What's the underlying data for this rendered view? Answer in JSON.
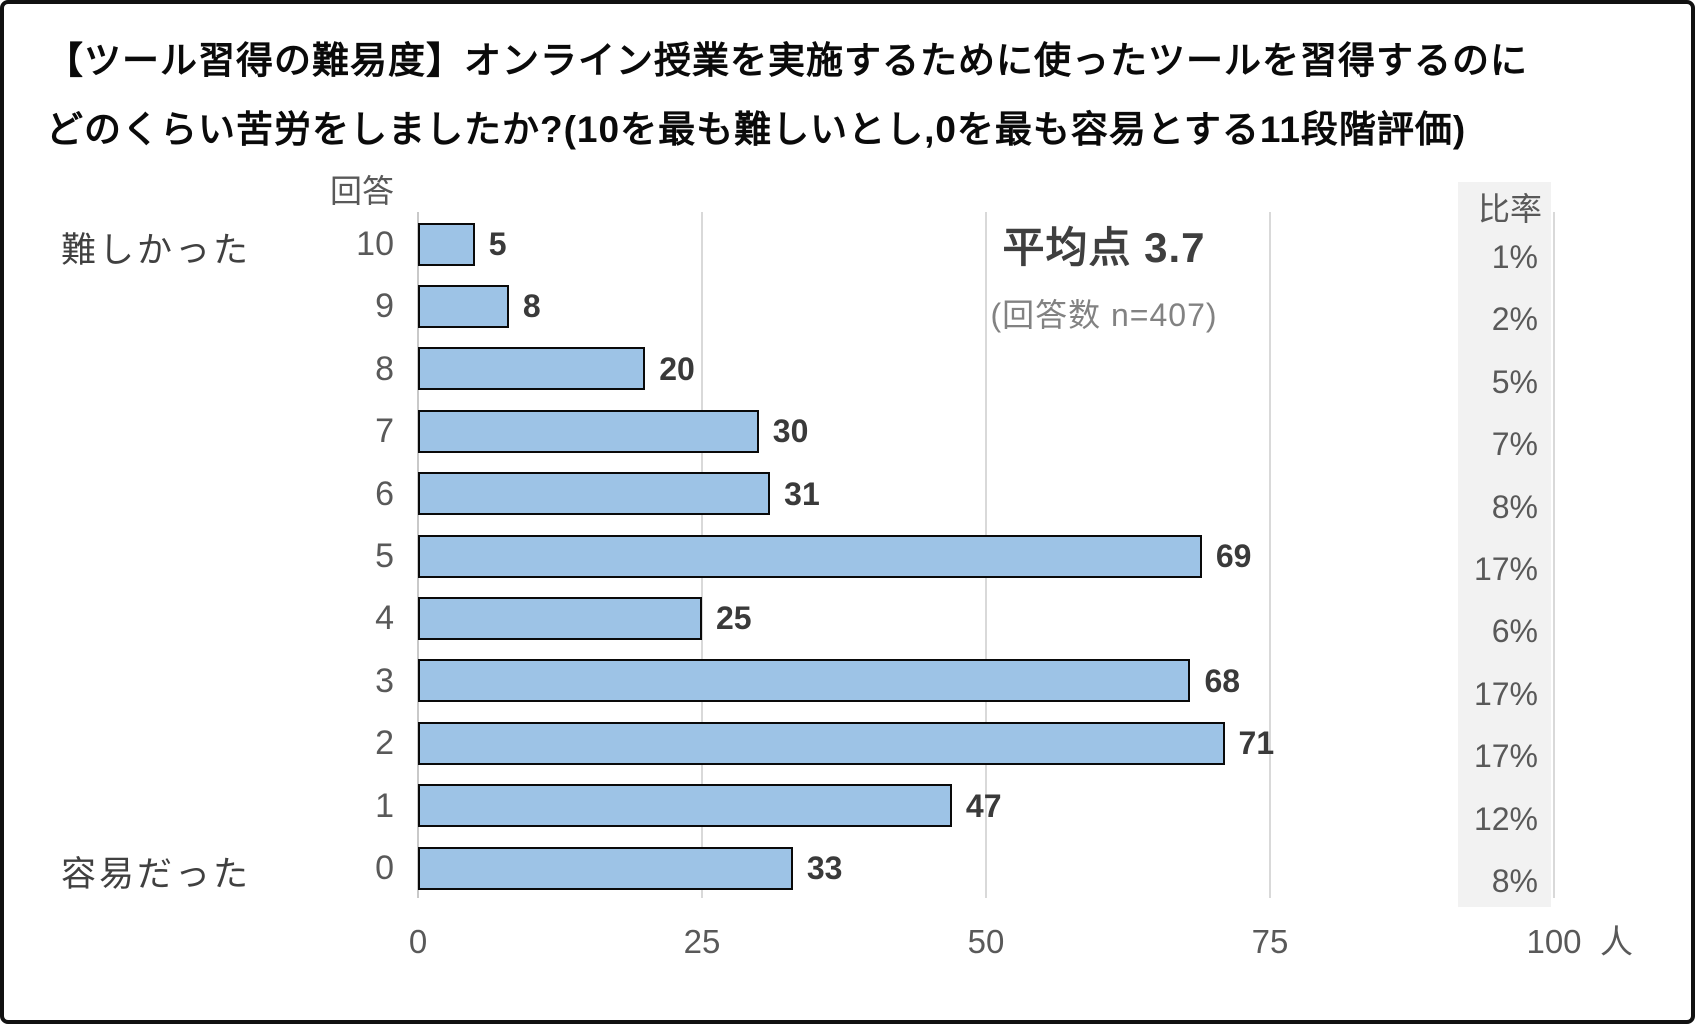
{
  "title": {
    "line1": "【ツール習得の難易度】オンライン授業を実施するために使ったツールを習得するのに",
    "line2": "どのくらい苦労をしましたか?(10を最も難しいとし,0を最も容易とする11段階評価)"
  },
  "labels": {
    "answer_header": "回答",
    "ratio_header": "比率",
    "difficult": "難しかった",
    "easy": "容易だった",
    "unit": "人"
  },
  "annotation": {
    "average": "平均点 3.7",
    "n": "(回答数 n=407)"
  },
  "chart_data": {
    "type": "bar",
    "orientation": "horizontal",
    "title": "ツール習得の難易度(11段階評価)",
    "categories": [
      "10",
      "9",
      "8",
      "7",
      "6",
      "5",
      "4",
      "3",
      "2",
      "1",
      "0"
    ],
    "values": [
      5,
      8,
      20,
      30,
      31,
      69,
      25,
      68,
      71,
      47,
      33
    ],
    "percentages": [
      "1%",
      "2%",
      "5%",
      "7%",
      "8%",
      "17%",
      "6%",
      "17%",
      "17%",
      "12%",
      "8%"
    ],
    "average_score": 3.7,
    "n": 407,
    "xlabel": "人",
    "ylabel": "回答",
    "x_ticks": [
      0,
      25,
      50,
      75,
      100
    ],
    "xlim": [
      0,
      100
    ],
    "grid": "vertical",
    "legend": "none",
    "bar_color": "#9DC3E6",
    "bar_border_color": "#0a0a0a",
    "ratio_band_color": "#F2F2F2"
  }
}
